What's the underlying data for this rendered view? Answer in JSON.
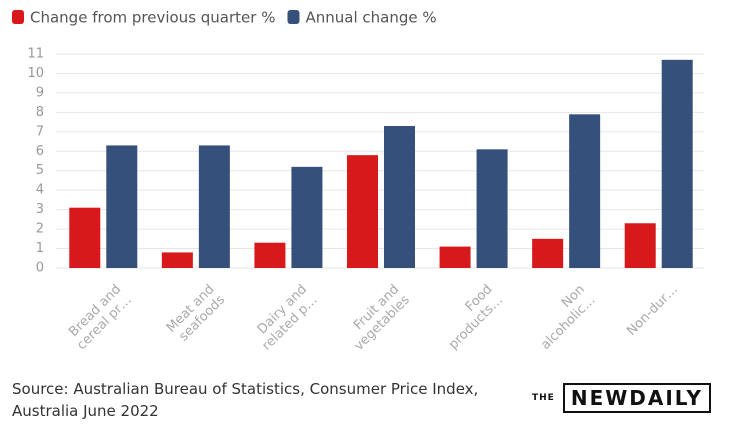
{
  "chart_data": {
    "type": "bar",
    "categories": [
      "Bread and\ncereal pr…",
      "Meat and\nseafoods",
      "Dairy and\nrelated p…",
      "Fruit and\nvegetables",
      "Food\nproducts…",
      "Non\nalcoholic…",
      "Non-dur…"
    ],
    "series": [
      {
        "name": "Change from previous quarter %",
        "color": "#d7191c",
        "values": [
          3.1,
          0.8,
          1.3,
          5.8,
          1.1,
          1.5,
          2.3
        ]
      },
      {
        "name": "Annual change %",
        "color": "#35507b",
        "values": [
          6.3,
          6.3,
          5.2,
          7.3,
          6.1,
          7.9,
          10.7
        ]
      }
    ],
    "ylim": [
      0,
      11
    ],
    "yticks": [
      0,
      1,
      2,
      3,
      4,
      5,
      6,
      7,
      8,
      9,
      10,
      11
    ],
    "grid": true,
    "source": "Source: Australian Bureau of Statistics, Consumer Price Index,\nAustralia June 2022",
    "logo": {
      "small": "THE",
      "main": "NEWDAILY"
    }
  }
}
